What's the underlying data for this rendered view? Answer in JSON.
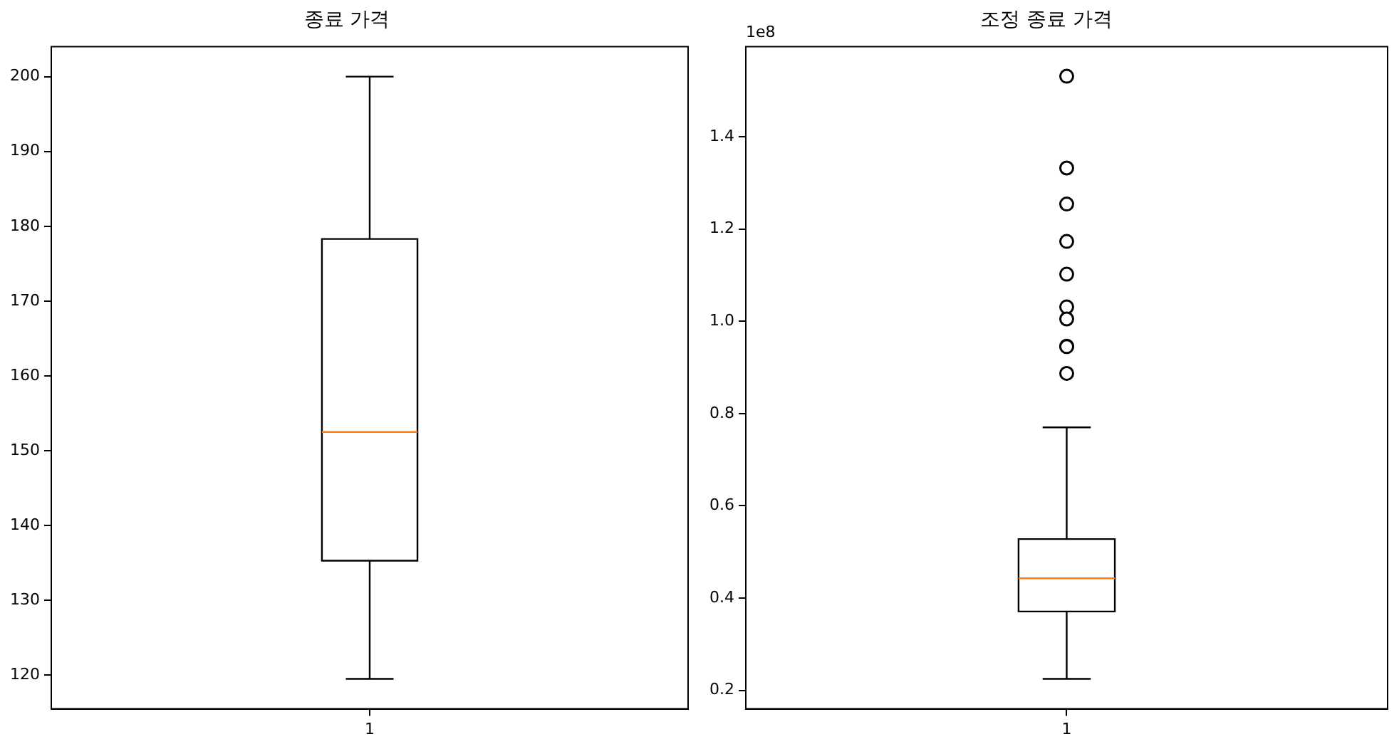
{
  "chart_data": [
    {
      "type": "box",
      "title": "종료 가격",
      "categories": [
        "1"
      ],
      "boxes": [
        {
          "low": 119.5,
          "q1": 135.3,
          "median": 152.5,
          "q3": 178.3,
          "high": 200
        }
      ],
      "ylim": [
        115.5,
        204
      ],
      "yticks": [
        120,
        130,
        140,
        150,
        160,
        170,
        180,
        190,
        200
      ],
      "grid": false
    },
    {
      "type": "box",
      "title": "조정 종료 가격",
      "categories": [
        "1"
      ],
      "boxes": [
        {
          "low": 0.225,
          "q1": 0.371,
          "median": 0.443,
          "q3": 0.528,
          "high": 0.77,
          "outliers": [
            1.531,
            1.332,
            1.254,
            1.173,
            1.102,
            1.031,
            1.005,
            0.946,
            0.945,
            0.887
          ]
        }
      ],
      "ylim": [
        0.16,
        1.595
      ],
      "yticks": [
        0.2,
        0.4,
        0.6,
        0.8,
        {
          "value": 1.0,
          "label": "1.0"
        },
        1.2,
        1.4
      ],
      "grid": false,
      "annotations": [
        "1e8"
      ]
    }
  ]
}
